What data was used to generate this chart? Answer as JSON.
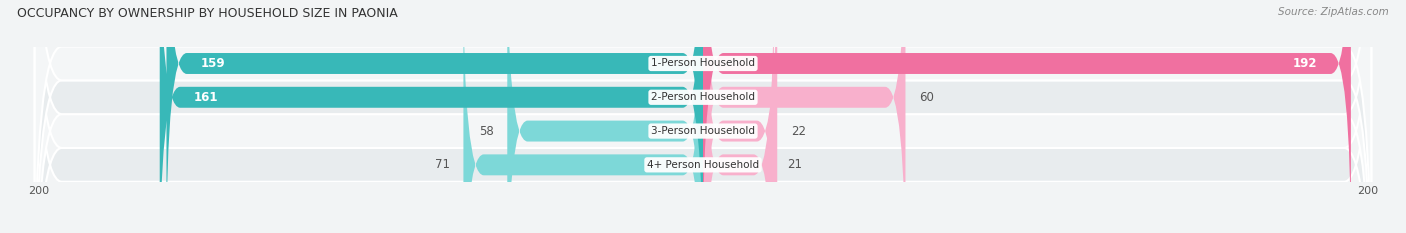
{
  "title": "OCCUPANCY BY OWNERSHIP BY HOUSEHOLD SIZE IN PAONIA",
  "source": "Source: ZipAtlas.com",
  "categories": [
    "1-Person Household",
    "2-Person Household",
    "3-Person Household",
    "4+ Person Household"
  ],
  "owner_values": [
    159,
    161,
    58,
    71
  ],
  "renter_values": [
    192,
    60,
    22,
    21
  ],
  "owner_color_dark": "#38B8B8",
  "owner_color_light": "#7DD8D8",
  "renter_color_dark": "#F070A0",
  "renter_color_light": "#F8B0CC",
  "bg_color": "#f2f4f5",
  "row_colors": [
    "#e8ecee",
    "#f4f6f7"
  ],
  "axis_max": 200,
  "title_color": "#333333",
  "label_dark_color": "#555555"
}
